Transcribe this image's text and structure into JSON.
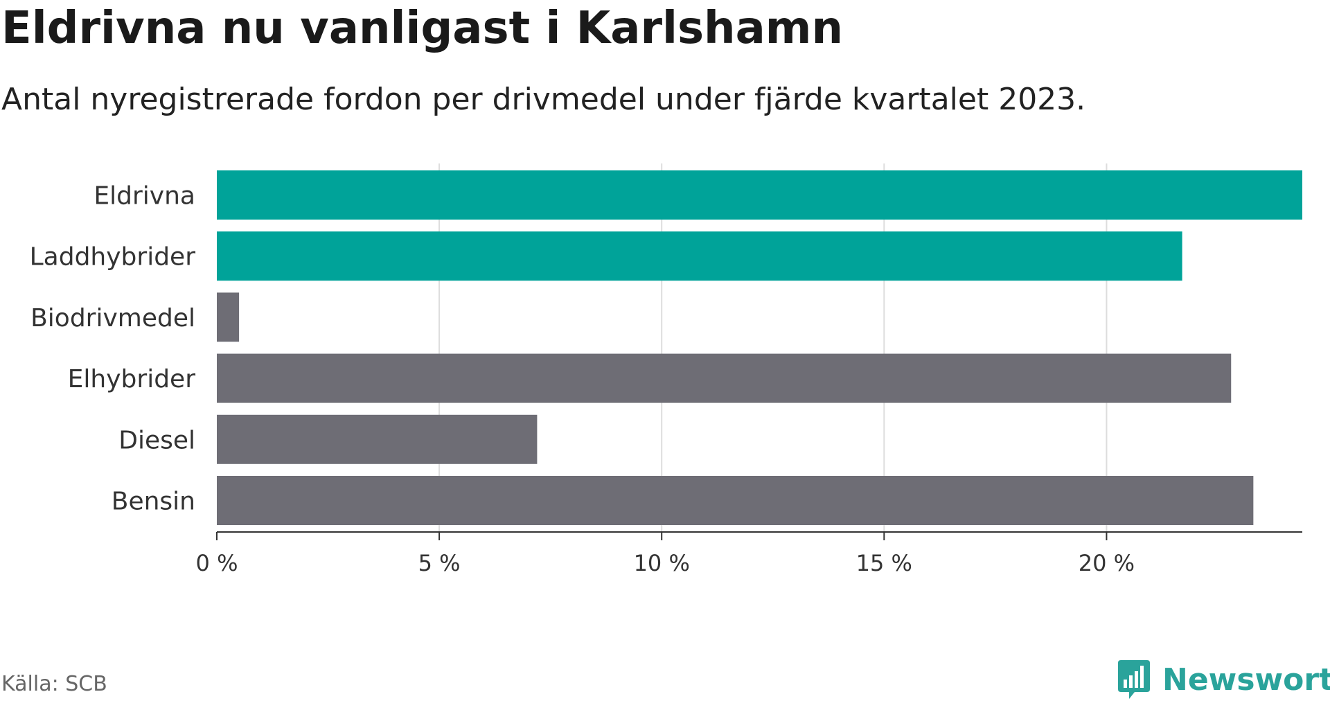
{
  "title": "Eldrivna nu vanligast i Karlshamn",
  "subtitle": "Antal nyregistrerade fordon per drivmedel under fjärde kvartalet 2023.",
  "source": "Källa: SCB",
  "brand": {
    "name": "Newsworthy",
    "icon": "newsworthy-logo-icon",
    "color": "#2aa39b"
  },
  "colors": {
    "highlight": "#00a399",
    "default": "#6e6d75",
    "grid": "#dddddd",
    "axis": "#333333"
  },
  "chart_data": {
    "type": "bar",
    "orientation": "horizontal",
    "title": "Eldrivna nu vanligast i Karlshamn",
    "subtitle": "Antal nyregistrerade fordon per drivmedel under fjärde kvartalet 2023.",
    "categories": [
      "Eldrivna",
      "Laddhybrider",
      "Biodrivmedel",
      "Elhybrider",
      "Diesel",
      "Bensin"
    ],
    "values": [
      24.4,
      21.7,
      0.5,
      22.8,
      7.2,
      23.3
    ],
    "unit": "%",
    "highlighted": [
      true,
      true,
      false,
      false,
      false,
      false
    ],
    "xlim": [
      0,
      24.4
    ],
    "xticks": [
      0,
      5,
      10,
      15,
      20
    ],
    "xtick_labels": [
      "0 %",
      "5 %",
      "10 %",
      "15 %",
      "20 %"
    ],
    "xlabel": "",
    "ylabel": "",
    "grid": true,
    "legend": "none"
  }
}
